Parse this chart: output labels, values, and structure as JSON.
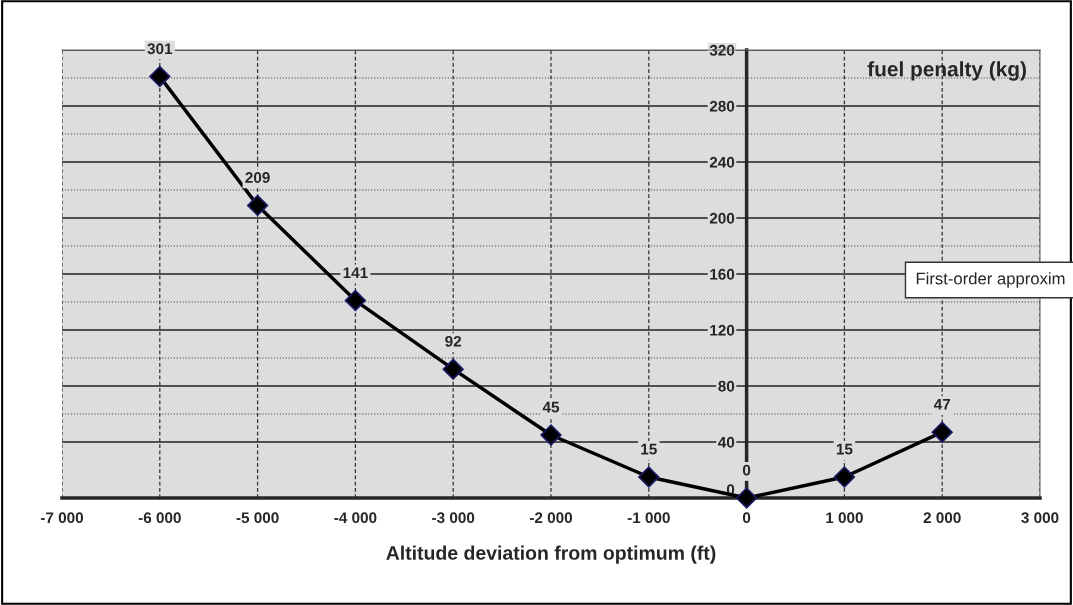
{
  "chart_data": {
    "type": "line",
    "xlabel": "Altitude deviation from optimum (ft)",
    "ylabel": "fuel penalty (kg)",
    "x": [
      -6000,
      -5000,
      -4000,
      -3000,
      -2000,
      -1000,
      0,
      1000,
      2000
    ],
    "series": [
      {
        "color": "#000000",
        "values": [
          301,
          209,
          141,
          92,
          45,
          15,
          0,
          15,
          47
        ]
      }
    ],
    "xlim": [
      -7000,
      3000
    ],
    "xticks": [
      {
        "value": -7000,
        "label": "-7 000"
      },
      {
        "value": -6000,
        "label": "-6 000"
      },
      {
        "value": -5000,
        "label": "-5 000"
      },
      {
        "value": -4000,
        "label": "-4 000"
      },
      {
        "value": -3000,
        "label": "-3 000"
      },
      {
        "value": -2000,
        "label": "-2 000"
      },
      {
        "value": -1000,
        "label": "-1 000"
      },
      0,
      {
        "value": 1000,
        "label": "1 000"
      },
      {
        "value": 2000,
        "label": "2 000"
      },
      {
        "value": 3000,
        "label": "3 000"
      }
    ],
    "ylim": [
      0,
      320
    ],
    "yticks": [
      0,
      40,
      80,
      120,
      160,
      200,
      240,
      280,
      320
    ],
    "grid": true,
    "marker": "diamond",
    "line_style": "solid",
    "data_labels": true,
    "annotations": [
      "First-order approxim"
    ]
  }
}
